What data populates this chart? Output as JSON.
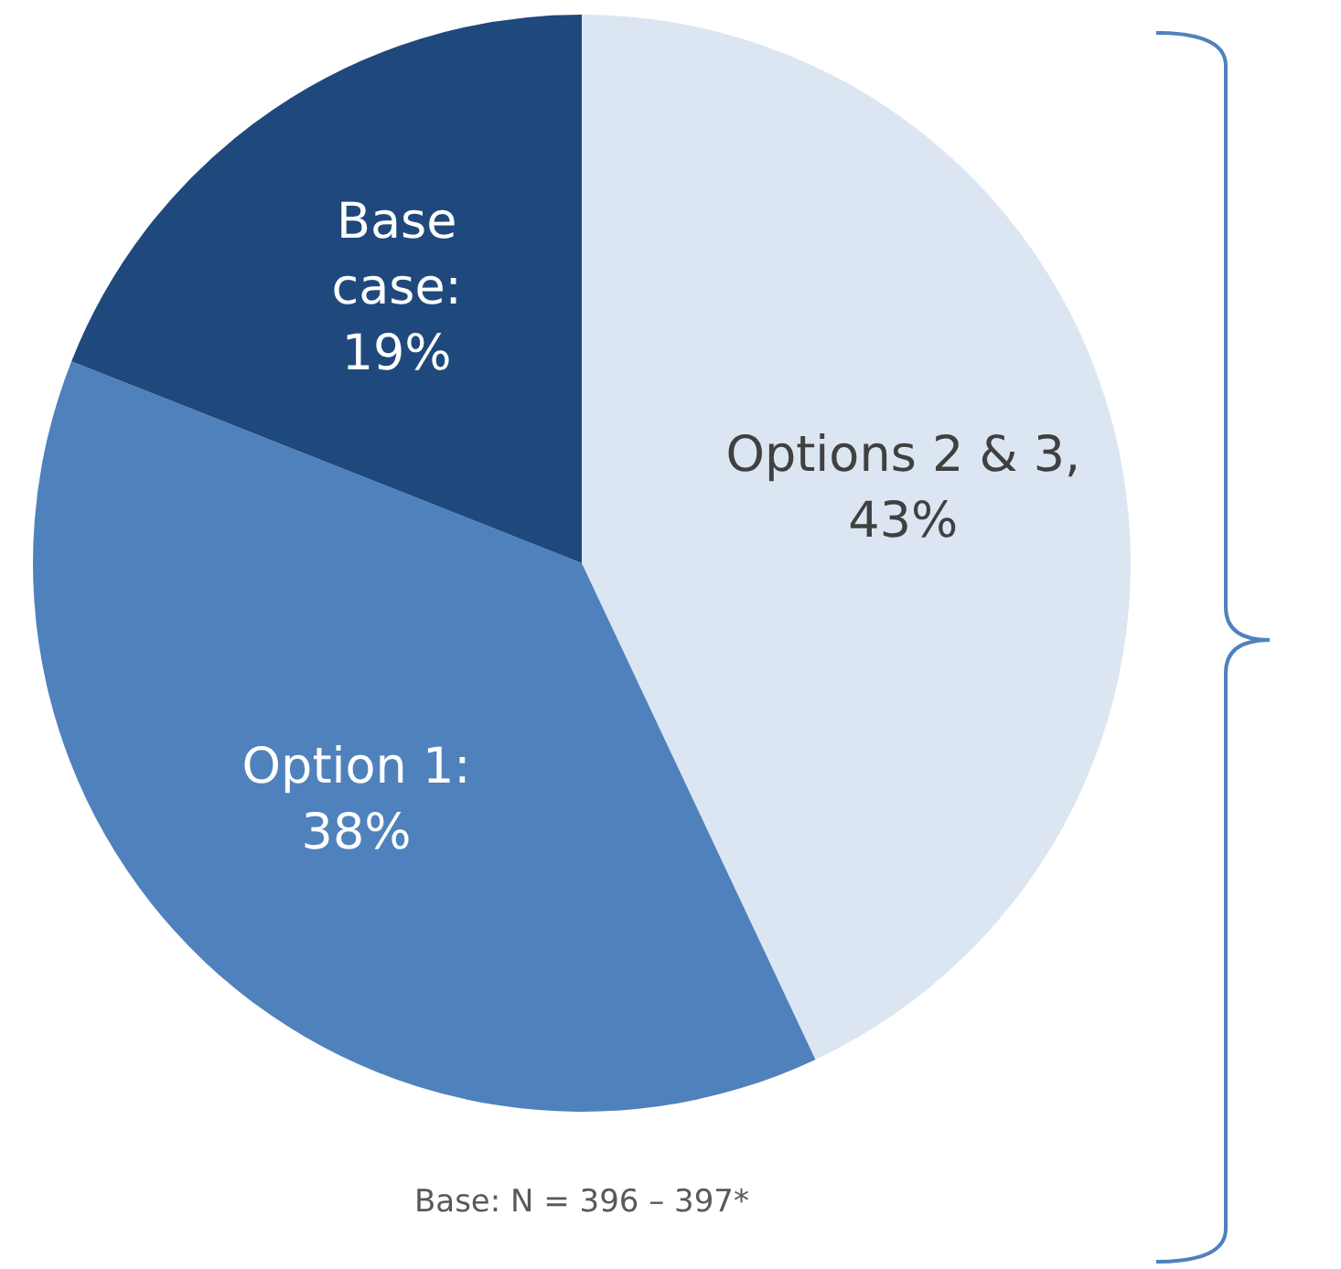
{
  "chart_data": {
    "type": "pie",
    "categories": [
      "Options 2 & 3",
      "Option 1",
      "Base case"
    ],
    "values": [
      43,
      38,
      19
    ],
    "value_labels": [
      ", 43%",
      ": 38%",
      ": 19%"
    ],
    "colors": [
      "#dce6f2",
      "#4f81bd",
      "#1f497d"
    ],
    "annotations": [
      "Base: N = 396 – 397*"
    ]
  }
}
